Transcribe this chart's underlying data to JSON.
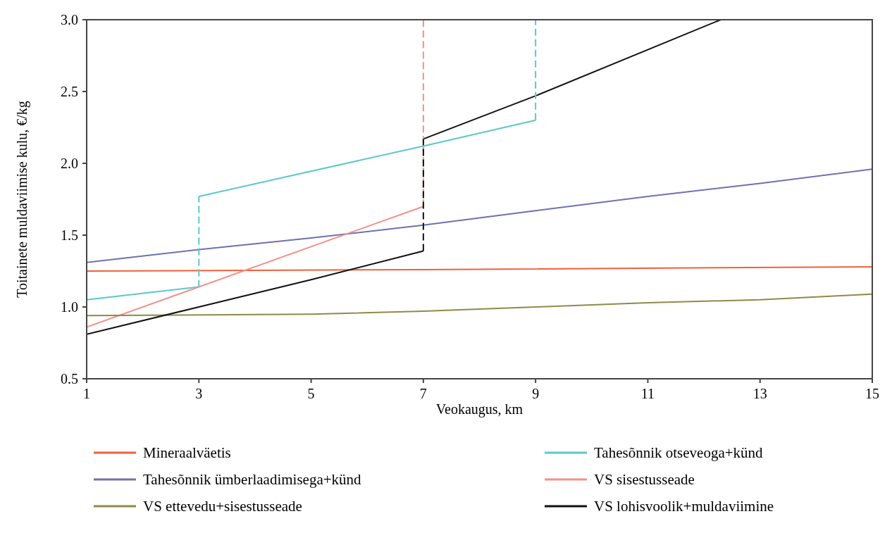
{
  "chart_data": {
    "type": "line",
    "xlabel": "Veokaugus, km",
    "ylabel": "Toitainete muldaviimise kulu, €/kg",
    "xlim": [
      1,
      15
    ],
    "xticks": [
      1,
      3,
      5,
      7,
      9,
      11,
      13,
      15
    ],
    "ylim": [
      0.5,
      3.0
    ],
    "yticks": [
      {
        "value": 0.5,
        "label": "0.5"
      },
      {
        "value": 1.0,
        "label": "1.0"
      },
      {
        "value": 1.5,
        "label": "1.5"
      },
      {
        "value": 2.0,
        "label": "2.0"
      },
      {
        "value": 2.5,
        "label": "2.5"
      },
      {
        "value": 3.0,
        "label": "3.0"
      }
    ],
    "grid": false,
    "legend": "bottom",
    "marker": "none",
    "series": [
      {
        "name": "Mineraalväetis",
        "color": "#f0603a",
        "x": [
          1,
          7,
          15
        ],
        "values": [
          1.25,
          1.26,
          1.28
        ]
      },
      {
        "name": "Tahesõnnik otseveoga+künd",
        "color": "#5cc8c8",
        "x": [
          1,
          3
        ],
        "values": [
          1.05,
          1.14
        ]
      },
      {
        "color": "#5cc8c8",
        "x": [
          3,
          7,
          9
        ],
        "values": [
          1.77,
          2.12,
          2.3
        ]
      },
      {
        "name": "Tahesõnnik ümberlaadimisega+künd",
        "color": "#7070b0",
        "x": [
          1,
          3,
          5,
          7,
          9,
          11,
          13,
          15
        ],
        "values": [
          1.31,
          1.4,
          1.48,
          1.57,
          1.67,
          1.77,
          1.86,
          1.96
        ]
      },
      {
        "name": "VS sisestusseade",
        "color": "#f4908a",
        "x": [
          1,
          7
        ],
        "values": [
          0.86,
          1.7
        ]
      },
      {
        "name": "VS ettevedu+sisestusseade",
        "color": "#8c8c48",
        "x": [
          1,
          5,
          7,
          9,
          11,
          13,
          15
        ],
        "values": [
          0.94,
          0.95,
          0.97,
          1.0,
          1.03,
          1.05,
          1.09
        ]
      },
      {
        "name": "VS lohisvoolik+muldaviimine",
        "color": "#111111",
        "x": [
          1,
          3,
          5,
          7
        ],
        "values": [
          0.81,
          1.0,
          1.19,
          1.39
        ]
      },
      {
        "color": "#111111",
        "x": [
          7,
          9,
          12.3
        ],
        "values": [
          2.17,
          2.47,
          3.0
        ]
      },
      {
        "color": "#5cc8c8",
        "line_style": "dashed",
        "x": [
          3,
          3
        ],
        "values": [
          1.14,
          1.77
        ]
      },
      {
        "color": "#5cc8c8",
        "line_style": "dashed",
        "x": [
          9,
          9
        ],
        "values": [
          2.3,
          3.0
        ]
      },
      {
        "color": "#f4908a",
        "line_style": "dashed",
        "x": [
          7,
          7
        ],
        "values": [
          1.7,
          3.0
        ]
      },
      {
        "color": "#111111",
        "line_style": "dashed",
        "x": [
          7,
          7
        ],
        "values": [
          1.39,
          2.17
        ]
      }
    ]
  }
}
